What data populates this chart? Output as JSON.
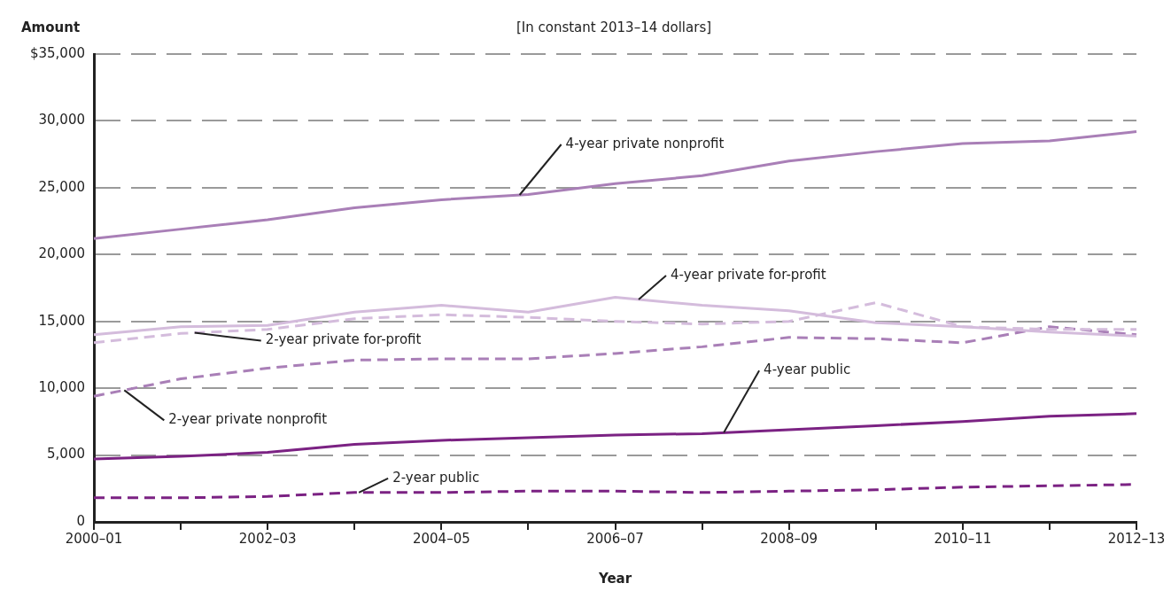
{
  "chart_data": {
    "type": "line",
    "subtitle": "[In constant 2013–14 dollars]",
    "ylabel": "Amount",
    "xlabel": "Year",
    "categories": [
      "2000–01",
      null,
      "2002–03",
      null,
      "2004–05",
      null,
      "2006–07",
      null,
      "2008–09",
      null,
      "2010–11",
      null,
      "2012–13"
    ],
    "ylim": [
      0,
      35000
    ],
    "yticks": [
      0,
      {
        "value": 5000,
        "label": "5,000"
      },
      {
        "value": 10000,
        "label": "10,000"
      },
      {
        "value": 15000,
        "label": "15,000"
      },
      {
        "value": 20000,
        "label": "20,000"
      },
      {
        "value": 25000,
        "label": "25,000"
      },
      {
        "value": 30000,
        "label": "30,000"
      },
      {
        "value": 35000,
        "label": "$35,000"
      }
    ],
    "grid": "y",
    "legend": false,
    "marker": "none",
    "series": [
      {
        "name": "4-year private nonprofit",
        "color": "#a97fb7",
        "line_style": "solid",
        "values": [
          21200,
          21900,
          22600,
          23500,
          24100,
          24500,
          25300,
          25900,
          27000,
          27700,
          28300,
          28500,
          29200
        ]
      },
      {
        "name": "4-year private for-profit",
        "color": "#d4bcdc",
        "line_style": "solid",
        "values": [
          14000,
          14600,
          14700,
          15700,
          16200,
          15700,
          16800,
          16200,
          15800,
          14900,
          14600,
          14200,
          13900
        ]
      },
      {
        "name": "2-year private for-profit",
        "color": "#d4bcdc",
        "line_style": "dashed",
        "values": [
          13400,
          14100,
          14400,
          15200,
          15500,
          15300,
          15000,
          14800,
          15000,
          16400,
          14600,
          14400,
          14400
        ]
      },
      {
        "name": "2-year private nonprofit",
        "color": "#a97fb7",
        "line_style": "dashed",
        "values": [
          9400,
          10700,
          11500,
          12100,
          12200,
          12200,
          12600,
          13100,
          13800,
          13700,
          13400,
          14600,
          14000
        ]
      },
      {
        "name": "4-year public",
        "color": "#7b2283",
        "line_style": "solid",
        "values": [
          4700,
          4900,
          5200,
          5800,
          6100,
          6300,
          6500,
          6600,
          6900,
          7200,
          7500,
          7900,
          8100
        ]
      },
      {
        "name": "2-year public",
        "color": "#7b2283",
        "line_style": "dashed",
        "values": [
          1800,
          1800,
          1900,
          2200,
          2200,
          2300,
          2300,
          2200,
          2300,
          2400,
          2600,
          2700,
          2800
        ]
      }
    ]
  }
}
